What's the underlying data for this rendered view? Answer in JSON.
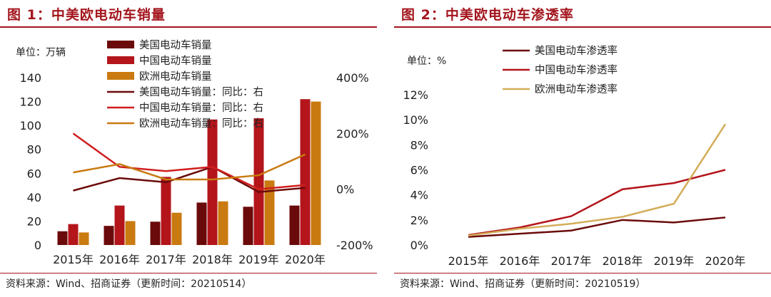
{
  "charts": [
    {
      "figure_title": "图 1：中美欧电动车销量",
      "unit_label": "单位：万辆",
      "source": "资料来源：Wind、招商证券（更新时间：20210514）"
    },
    {
      "figure_title": "图 2：中美欧电动车渗透率",
      "unit_label": "单位：%",
      "source": "资料来源：Wind、招商证券（更新时间：20210519）"
    }
  ],
  "chart_data": [
    {
      "type": "bar",
      "categories": [
        "2015年",
        "2016年",
        "2017年",
        "2018年",
        "2019年",
        "2020年"
      ],
      "y_left": {
        "ticks": [
          "0",
          "20",
          "40",
          "60",
          "80",
          "100",
          "120",
          "140"
        ],
        "range": [
          0,
          140
        ]
      },
      "y_right": {
        "ticks": [
          "-200%",
          "0%",
          "200%",
          "400%"
        ],
        "range": [
          -200,
          400
        ]
      },
      "bar_series": [
        {
          "name": "美国电动车销量",
          "color": "#6b0a0a",
          "values": [
            11.5,
            16,
            19.5,
            35.5,
            32,
            33
          ]
        },
        {
          "name": "中国电动车销量",
          "color": "#b3151b",
          "values": [
            17.5,
            33,
            57,
            105,
            106,
            122
          ]
        },
        {
          "name": "欧洲电动车销量",
          "color": "#c97a10",
          "values": [
            10.5,
            20,
            27,
            36.5,
            54,
            120
          ]
        }
      ],
      "line_series": [
        {
          "name": "美国电动车销量：同比：右",
          "color": "#6b0a0a",
          "values": [
            -5,
            40,
            25,
            80,
            -10,
            5
          ]
        },
        {
          "name": "中国电动车销量：同比：右",
          "color": "#d01e1e",
          "values": [
            200,
            80,
            65,
            80,
            0,
            15
          ]
        },
        {
          "name": "欧洲电动车销量：同比：右",
          "color": "#c97a10",
          "values": [
            60,
            90,
            35,
            35,
            50,
            125
          ]
        }
      ],
      "legend_position": "top-center"
    },
    {
      "type": "line",
      "categories": [
        "2015年",
        "2016年",
        "2017年",
        "2018年",
        "2019年",
        "2020年"
      ],
      "y": {
        "ticks": [
          "0%",
          "2%",
          "4%",
          "6%",
          "8%",
          "10%",
          "12%"
        ],
        "range": [
          0,
          12
        ]
      },
      "series": [
        {
          "name": "美国电动车渗透率",
          "color": "#6b0a0a",
          "values": [
            0.65,
            0.9,
            1.15,
            2.0,
            1.8,
            2.2
          ]
        },
        {
          "name": "中国电动车渗透率",
          "color": "#b3151b",
          "values": [
            0.8,
            1.4,
            2.3,
            4.45,
            4.95,
            6.0
          ]
        },
        {
          "name": "欧洲电动车渗透率",
          "color": "#d4ad5a",
          "values": [
            0.75,
            1.3,
            1.7,
            2.25,
            3.3,
            9.65
          ]
        }
      ],
      "legend_position": "top-center"
    }
  ]
}
